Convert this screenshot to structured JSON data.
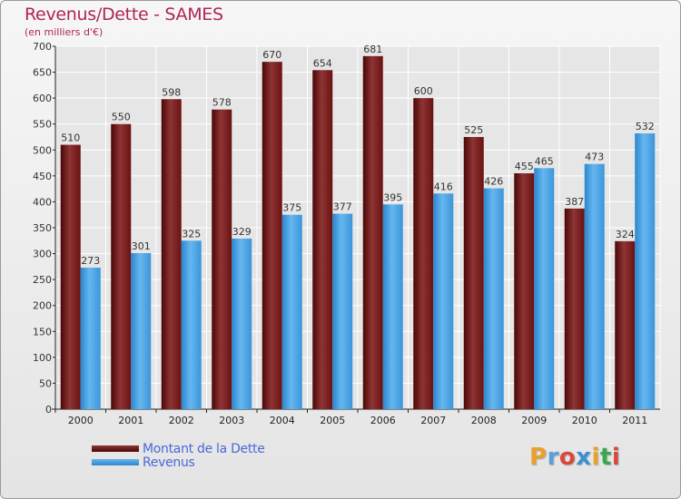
{
  "title": "Revenus/Dette - SAMES",
  "subtitle": "(en milliers d'€)",
  "logo_text": "Proxiti",
  "colors": {
    "debt": "#6b0d0d",
    "debt_light": "#913737",
    "revenue": "#2f8fd6",
    "revenue_light": "#62b4ee",
    "title": "#b0245a",
    "legend_text": "#4a68d8"
  },
  "chart_data": {
    "type": "bar",
    "title": "Revenus/Dette - SAMES",
    "subtitle": "(en milliers d'€)",
    "categories": [
      "2000",
      "2001",
      "2002",
      "2003",
      "2004",
      "2005",
      "2006",
      "2007",
      "2008",
      "2009",
      "2010",
      "2011"
    ],
    "series": [
      {
        "name": "Montant de la Dette",
        "values": [
          510,
          550,
          598,
          578,
          670,
          654,
          681,
          600,
          525,
          455,
          387,
          324
        ]
      },
      {
        "name": "Revenus",
        "values": [
          273,
          301,
          325,
          329,
          375,
          377,
          395,
          416,
          426,
          465,
          473,
          532
        ]
      }
    ],
    "ylim": [
      0,
      700
    ],
    "yticks": [
      0,
      50,
      100,
      150,
      200,
      250,
      300,
      350,
      400,
      450,
      500,
      550,
      600,
      650,
      700
    ],
    "grid": true,
    "legend": "bottom-left"
  }
}
